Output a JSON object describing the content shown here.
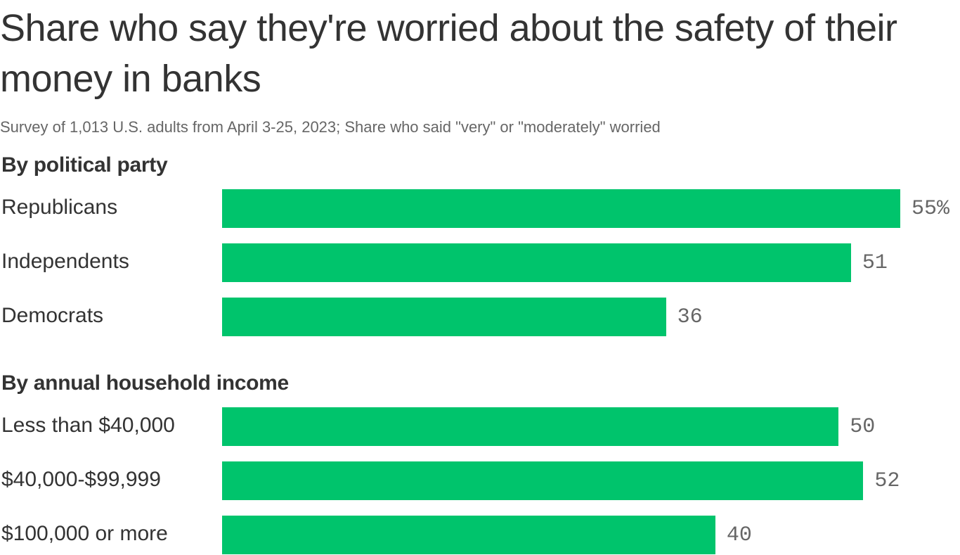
{
  "title": "Share who say they're worried about the safety of their money in banks",
  "subtitle": "Survey of 1,013 U.S. adults from April 3-25, 2023; Share who said \"very\" or \"moderately\" worried",
  "colors": {
    "bar": "#00c46c",
    "text": "#333333",
    "muted": "#666666"
  },
  "chart_data": {
    "type": "bar",
    "orientation": "horizontal",
    "title": "Share who say they're worried about the safety of their money in banks",
    "subtitle": "Survey of 1,013 U.S. adults from April 3-25, 2023; Share who said \"very\" or \"moderately\" worried",
    "xlabel": "",
    "ylabel": "",
    "unit": "%",
    "xlim": [
      0,
      55
    ],
    "grid": false,
    "legend": null,
    "groups": [
      {
        "name": "By political party",
        "categories": [
          "Republicans",
          "Independents",
          "Democrats"
        ],
        "values": [
          55,
          51,
          36
        ],
        "labels": [
          "55%",
          "51",
          "36"
        ]
      },
      {
        "name": "By annual household income",
        "categories": [
          "Less than $40,000",
          "$40,000-$99,999",
          "$100,000 or more"
        ],
        "values": [
          50,
          52,
          40
        ],
        "labels": [
          "50",
          "52",
          "40"
        ]
      }
    ]
  }
}
